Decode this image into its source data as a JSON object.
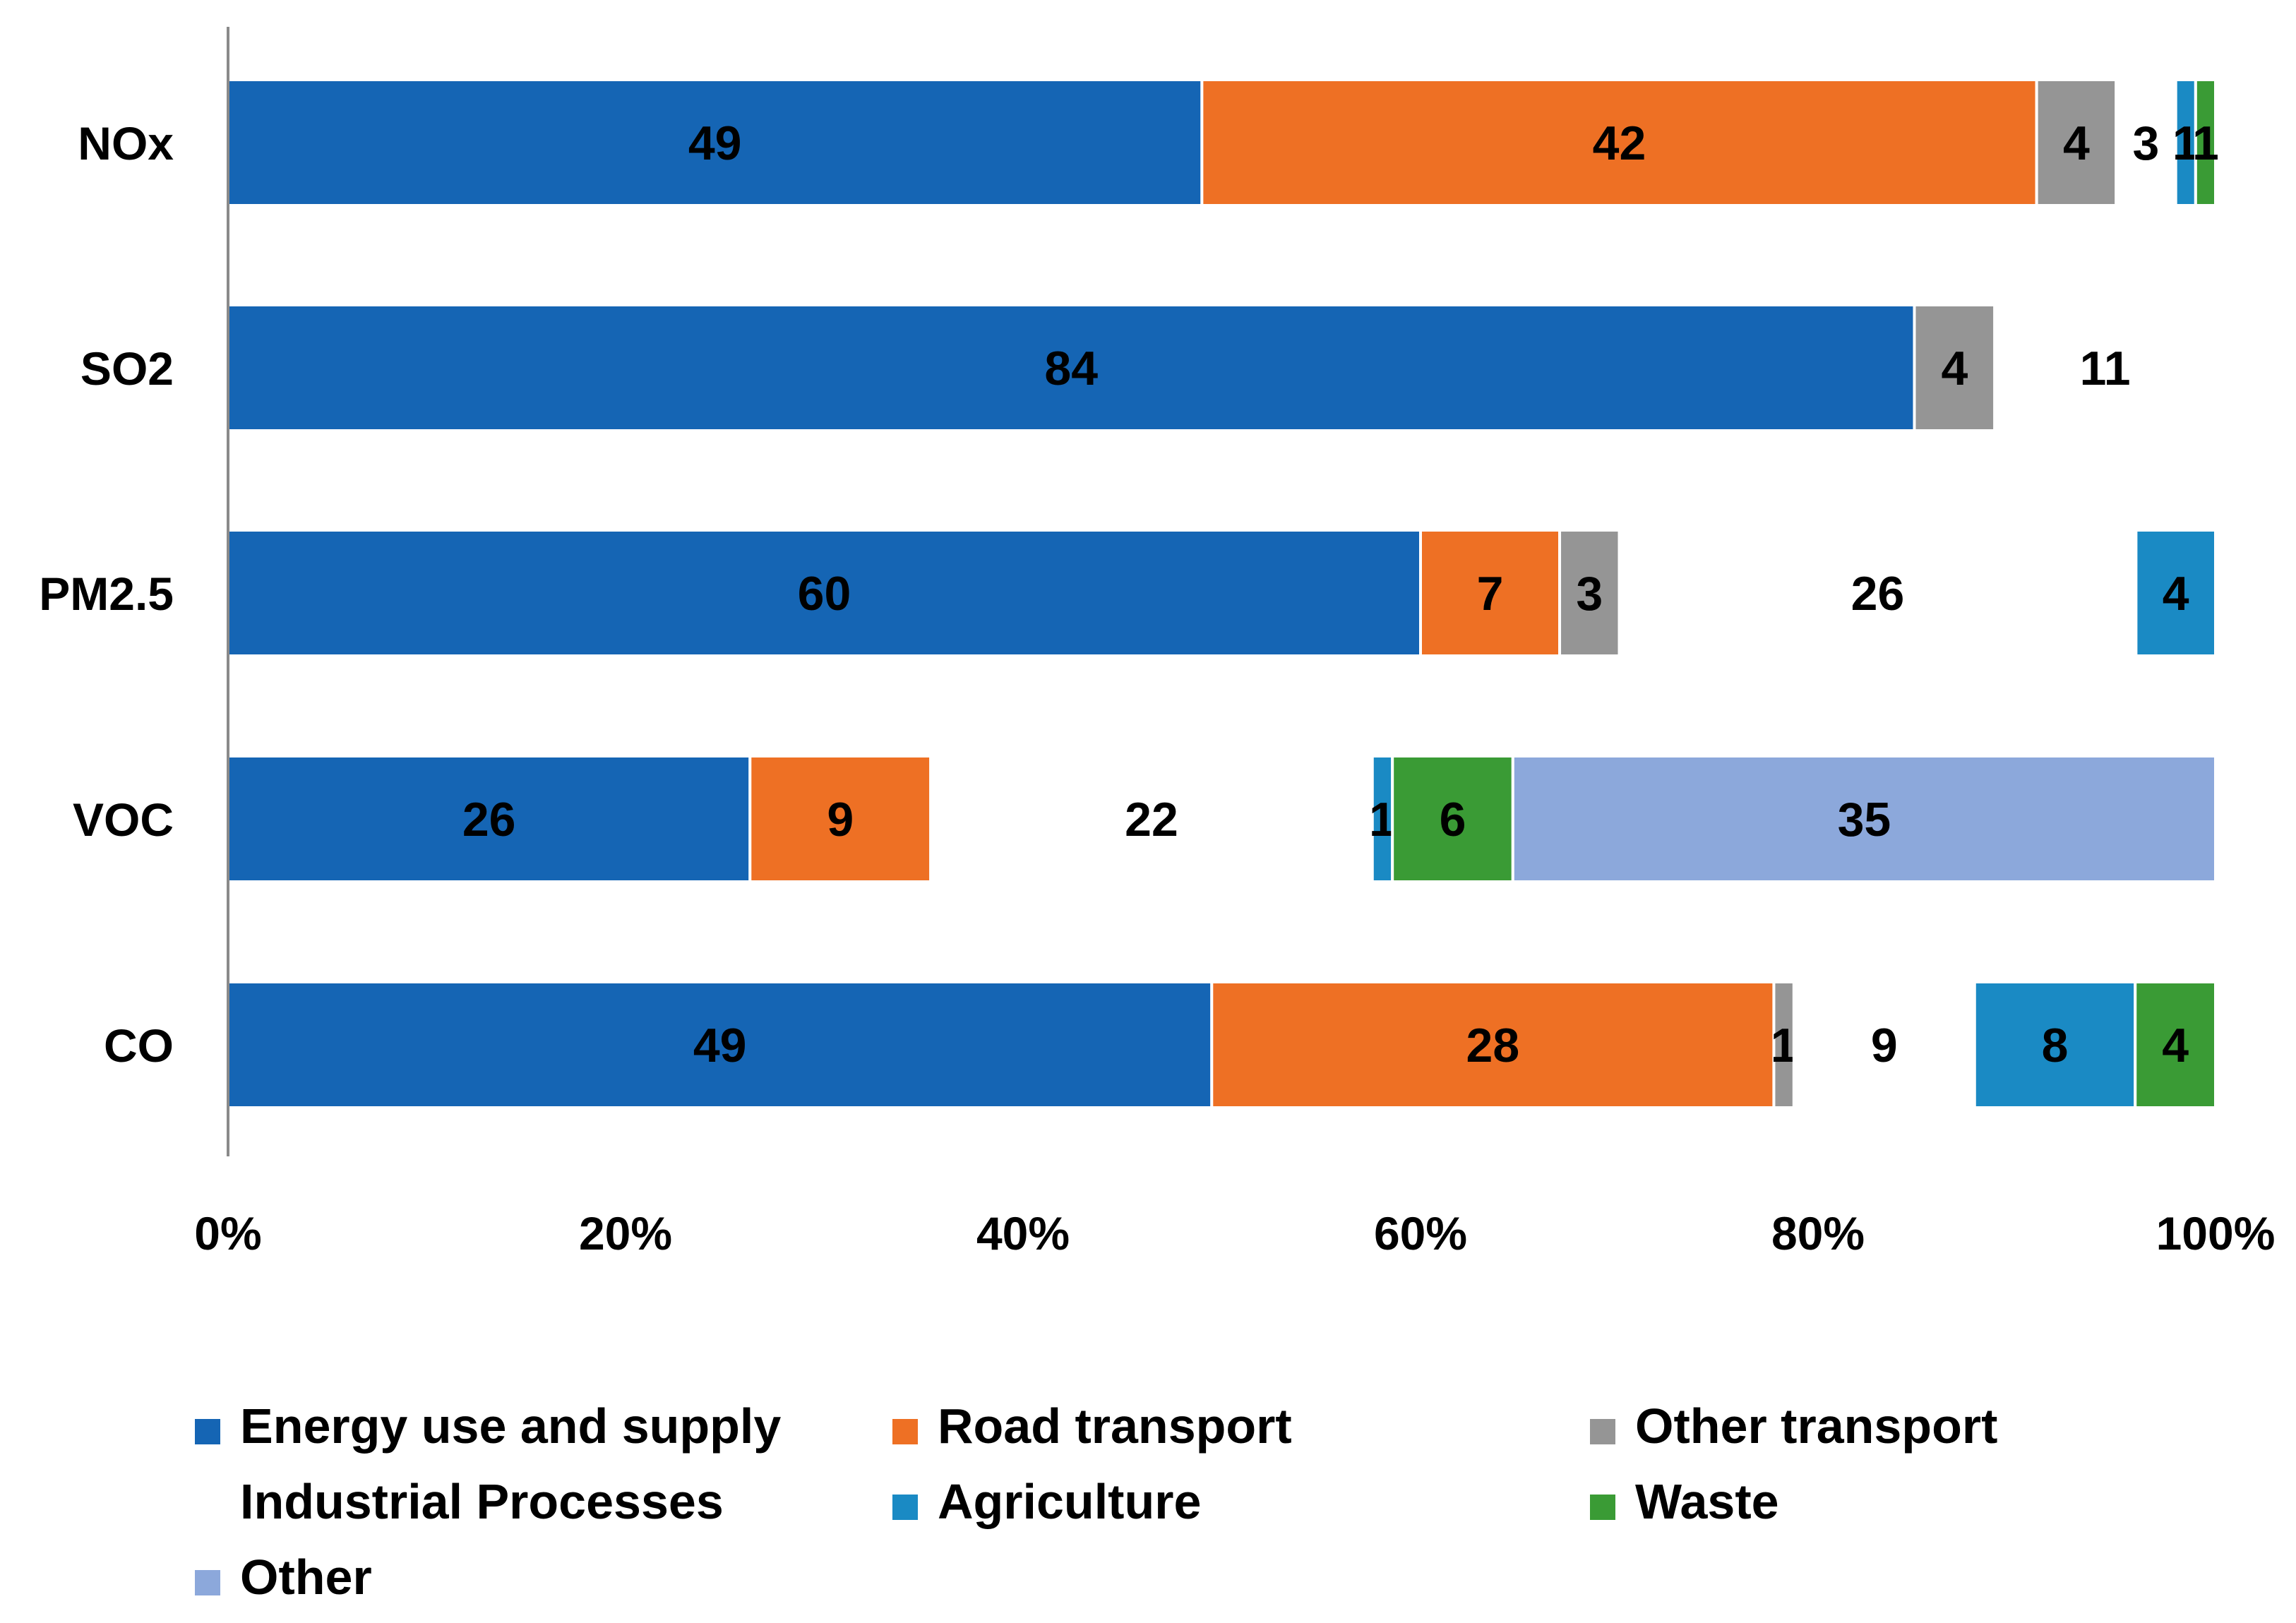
{
  "chart_data": {
    "type": "bar",
    "orientation": "horizontal",
    "stacked": "percent",
    "categories": [
      "NOx",
      "SO2",
      "PM2.5",
      "VOC",
      "CO"
    ],
    "series": [
      {
        "name": "Energy use and supply",
        "color": "#1565b4",
        "values": [
          49,
          84,
          60,
          26,
          49
        ],
        "labels": [
          "49",
          "84",
          "60",
          "26",
          "49"
        ]
      },
      {
        "name": "Road transport",
        "color": "#ee7024",
        "values": [
          42,
          0,
          7,
          9,
          28
        ],
        "labels": [
          "42",
          "",
          "7",
          "9",
          "28"
        ]
      },
      {
        "name": "Other transport",
        "color": "#959595",
        "values": [
          4,
          4,
          3,
          0,
          1
        ],
        "labels": [
          "4",
          "4",
          "3",
          "",
          "1"
        ]
      },
      {
        "name": "Industrial Processes",
        "color": "#ffffff",
        "values": [
          3,
          11,
          26,
          22,
          9
        ],
        "labels": [
          "3",
          "11",
          "26",
          "22",
          "9"
        ]
      },
      {
        "name": "Agriculture",
        "color": "#1a8ac4",
        "values": [
          1,
          0,
          4,
          1,
          8
        ],
        "labels": [
          "1",
          "",
          "4",
          "1",
          "8"
        ]
      },
      {
        "name": "Waste",
        "color": "#3a9b35",
        "values": [
          1,
          0,
          0,
          6,
          4
        ],
        "labels": [
          "1",
          "",
          "",
          "6",
          "4"
        ]
      },
      {
        "name": "Other",
        "color": "#8ca8db",
        "values": [
          0,
          0,
          0,
          35,
          0
        ],
        "labels": [
          "",
          "",
          "",
          "35",
          ""
        ]
      }
    ],
    "xlim": [
      0,
      100
    ],
    "x_ticks": [
      "0%",
      "20%",
      "40%",
      "60%",
      "80%",
      "100%"
    ],
    "grid": false,
    "legend_position": "bottom"
  }
}
